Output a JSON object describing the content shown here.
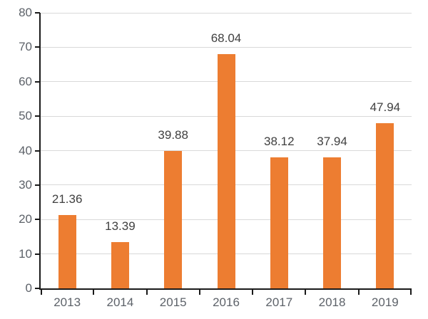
{
  "chart_data": {
    "type": "bar",
    "title": "",
    "xlabel": "",
    "ylabel": "",
    "categories": [
      "2013",
      "2014",
      "2015",
      "2016",
      "2017",
      "2018",
      "2019"
    ],
    "values": [
      21.36,
      13.39,
      39.88,
      68.04,
      38.12,
      37.94,
      47.94
    ],
    "data_labels": [
      "21.36",
      "13.39",
      "39.88",
      "68.04",
      "38.12",
      "37.94",
      "47.94"
    ],
    "ylim": [
      0,
      80
    ],
    "ytick_interval": 10,
    "yticks": [
      "0",
      "10",
      "20",
      "30",
      "40",
      "50",
      "60",
      "70",
      "80"
    ],
    "grid": "horizontal",
    "legend_position": "none",
    "colors": {
      "bar": "#ED7D31",
      "axis_line": "#1a1a1a",
      "gridline": "#D9D9D9",
      "tick_label": "#5d6269",
      "data_label": "#404040",
      "background": "#ffffff"
    }
  }
}
